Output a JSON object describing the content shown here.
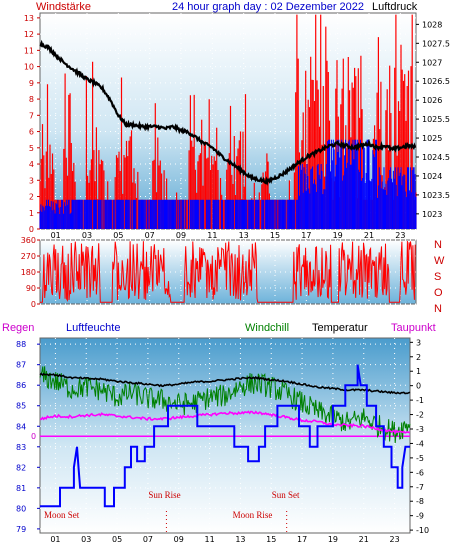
{
  "header": {
    "left_label": "Windstärke",
    "title": "24 hour graph day : 02 Dezember 2022",
    "right_label": "Luftdruck"
  },
  "bottom_header": {
    "regen": "Regen",
    "luftfeuchte": "Luftfeuchte",
    "windchill": "Windchill",
    "temperatur": "Temperatur",
    "taupunkt": "Taupunkt"
  },
  "direction_labels": [
    "N",
    "W",
    "S",
    "O",
    "N"
  ],
  "colors": {
    "wind": "#ff0000",
    "wind_avg": "#0000ff",
    "pressure": "#000000",
    "humidity": "#0000ff",
    "windchill": "#008000",
    "temperature": "#000000",
    "dewpoint": "#ff00ff",
    "rain": "#ff00ff",
    "label_red": "#cc0000",
    "label_blue": "#0000cc"
  },
  "annotations": {
    "sun_rise": "Sun Rise",
    "sun_set": "Sun Set",
    "moon_set": "Moon Set",
    "moon_rise": "Moon Rise",
    "sun_rise_hour": 8.2,
    "sun_set_hour": 16.2,
    "moon_set_hour": 0.2,
    "moon_rise_hour": 16.0
  },
  "rain_zero_label": "0",
  "chart_data": [
    {
      "type": "bar",
      "name": "wind_pressure",
      "x_hours": [
        1,
        3,
        5,
        7,
        9,
        11,
        13,
        15,
        17,
        19,
        21,
        23
      ],
      "x_labels": [
        "01",
        "03",
        "05",
        "07",
        "09",
        "11",
        "13",
        "15",
        "17",
        "19",
        "21",
        "23"
      ],
      "y_left_ticks": [
        0,
        1,
        2,
        3,
        4,
        5,
        6,
        7,
        8,
        9,
        10,
        11,
        12,
        13
      ],
      "y_left_range": [
        0,
        13.3
      ],
      "y_right_ticks": [
        1023,
        1023.5,
        1024,
        1024.5,
        1025,
        1025.5,
        1026,
        1026.5,
        1027,
        1027.5,
        1028
      ],
      "y_right_range": [
        1022.6,
        1028.3
      ],
      "gust_bursts": [
        {
          "from": 0.0,
          "to": 0.9,
          "level": 5.5
        },
        {
          "from": 1.5,
          "to": 2.2,
          "level": 5.5
        },
        {
          "from": 2.9,
          "to": 4.1,
          "level": 5.5
        },
        {
          "from": 4.8,
          "to": 6.3,
          "level": 5.5
        },
        {
          "from": 7.2,
          "to": 7.8,
          "level": 4.5
        },
        {
          "from": 9.5,
          "to": 11.4,
          "level": 5.5
        },
        {
          "from": 12.0,
          "to": 13.2,
          "level": 5.5
        },
        {
          "from": 14.1,
          "to": 14.7,
          "level": 4.5
        },
        {
          "from": 16.3,
          "to": 18.5,
          "level": 9.5
        },
        {
          "from": 18.8,
          "to": 20.6,
          "level": 9.5
        },
        {
          "from": 21.2,
          "to": 22.4,
          "level": 9.0
        },
        {
          "from": 22.6,
          "to": 23.9,
          "level": 11.0
        }
      ],
      "gust_baseline": 1.8,
      "avg_baseline": 1.8,
      "avg_bursts": [
        {
          "from": 0.0,
          "to": 2.0,
          "level": 1.8
        },
        {
          "from": 16.5,
          "to": 18.3,
          "level": 4.0
        },
        {
          "from": 18.3,
          "to": 21.5,
          "level": 5.5
        },
        {
          "from": 21.5,
          "to": 24.0,
          "level": 3.8
        }
      ],
      "pressure_series": [
        [
          0,
          1027.5
        ],
        [
          0.5,
          1027.4
        ],
        [
          1,
          1027.2
        ],
        [
          1.5,
          1027.0
        ],
        [
          2,
          1026.85
        ],
        [
          2.5,
          1026.7
        ],
        [
          3,
          1026.55
        ],
        [
          3.5,
          1026.45
        ],
        [
          4,
          1026.3
        ],
        [
          4.5,
          1026.0
        ],
        [
          5,
          1025.6
        ],
        [
          5.5,
          1025.35
        ],
        [
          6,
          1025.35
        ],
        [
          6.5,
          1025.3
        ],
        [
          7,
          1025.3
        ],
        [
          7.5,
          1025.3
        ],
        [
          8,
          1025.25
        ],
        [
          8.5,
          1025.3
        ],
        [
          9,
          1025.2
        ],
        [
          9.5,
          1025.15
        ],
        [
          10,
          1025.0
        ],
        [
          10.5,
          1024.85
        ],
        [
          11,
          1024.75
        ],
        [
          11.5,
          1024.55
        ],
        [
          12,
          1024.4
        ],
        [
          12.5,
          1024.25
        ],
        [
          13,
          1024.1
        ],
        [
          13.5,
          1023.95
        ],
        [
          14,
          1023.9
        ],
        [
          14.5,
          1023.85
        ],
        [
          15,
          1023.95
        ],
        [
          15.5,
          1024.05
        ],
        [
          16,
          1024.2
        ],
        [
          16.5,
          1024.35
        ],
        [
          17,
          1024.5
        ],
        [
          17.5,
          1024.6
        ],
        [
          18,
          1024.7
        ],
        [
          18.5,
          1024.8
        ],
        [
          19,
          1024.85
        ],
        [
          19.5,
          1024.8
        ],
        [
          20,
          1024.75
        ],
        [
          20.5,
          1024.8
        ],
        [
          21,
          1024.85
        ],
        [
          21.5,
          1024.75
        ],
        [
          22,
          1024.8
        ],
        [
          22.5,
          1024.7
        ],
        [
          23,
          1024.75
        ],
        [
          23.5,
          1024.8
        ],
        [
          24,
          1024.75
        ]
      ]
    },
    {
      "type": "scatter",
      "name": "wind_direction",
      "y_ticks": [
        0,
        90,
        180,
        270,
        360
      ],
      "y_range": [
        0,
        360
      ],
      "active_segments": [
        {
          "from": 0.2,
          "to": 3.8
        },
        {
          "from": 4.6,
          "to": 8.3
        },
        {
          "from": 9.2,
          "to": 13.9
        },
        {
          "from": 16.2,
          "to": 18.6
        },
        {
          "from": 19.1,
          "to": 22.3
        },
        {
          "from": 23.0,
          "to": 24.0
        }
      ],
      "idle_level": 10
    },
    {
      "type": "line",
      "name": "temperature_humidity",
      "y_left_ticks": [
        79,
        80,
        81,
        82,
        83,
        84,
        85,
        86,
        87,
        88
      ],
      "y_left_range": [
        78.8,
        88.3
      ],
      "y_right_ticks": [
        3,
        2,
        1,
        0,
        -1,
        -2,
        -3,
        -4,
        -5,
        -6,
        -7,
        -8,
        -9,
        -10
      ],
      "y_right_range": [
        -10.2,
        3.3
      ],
      "temperature_series": [
        [
          0,
          0.8
        ],
        [
          1,
          0.75
        ],
        [
          2,
          0.55
        ],
        [
          3,
          0.5
        ],
        [
          4,
          0.45
        ],
        [
          5,
          0.3
        ],
        [
          6,
          0.2
        ],
        [
          7,
          0.1
        ],
        [
          8,
          0.0
        ],
        [
          9,
          0.1
        ],
        [
          10,
          0.25
        ],
        [
          11,
          0.3
        ],
        [
          12,
          0.4
        ],
        [
          13,
          0.5
        ],
        [
          14,
          0.55
        ],
        [
          15,
          0.4
        ],
        [
          16,
          0.3
        ],
        [
          17,
          0.1
        ],
        [
          18,
          -0.1
        ],
        [
          19,
          -0.2
        ],
        [
          20,
          -0.3
        ],
        [
          21,
          -0.3
        ],
        [
          22,
          -0.4
        ],
        [
          23,
          -0.5
        ],
        [
          24,
          -0.5
        ]
      ],
      "windchill_series": [
        [
          0,
          0.7
        ],
        [
          1,
          0.3
        ],
        [
          2,
          -0.2
        ],
        [
          3,
          -0.1
        ],
        [
          4,
          -0.3
        ],
        [
          5,
          -0.8
        ],
        [
          6,
          -0.5
        ],
        [
          7,
          -0.9
        ],
        [
          8,
          -1.0
        ],
        [
          9,
          -1.3
        ],
        [
          10,
          -1.2
        ],
        [
          11,
          -0.8
        ],
        [
          12,
          -0.7
        ],
        [
          13,
          0.0
        ],
        [
          14,
          0.2
        ],
        [
          15,
          -0.1
        ],
        [
          16,
          -0.6
        ],
        [
          17,
          -1.2
        ],
        [
          18,
          -1.8
        ],
        [
          19,
          -2.2
        ],
        [
          20,
          -2.6
        ],
        [
          21,
          -2.2
        ],
        [
          22,
          -2.8
        ],
        [
          23,
          -3.2
        ],
        [
          24,
          -2.6
        ]
      ],
      "dewpoint_series": [
        [
          0,
          -2.3
        ],
        [
          1,
          -2.1
        ],
        [
          2,
          -2.15
        ],
        [
          3,
          -2.05
        ],
        [
          4,
          -2.0
        ],
        [
          5,
          -2.1
        ],
        [
          6,
          -2.2
        ],
        [
          7,
          -2.3
        ],
        [
          8,
          -2.3
        ],
        [
          9,
          -2.2
        ],
        [
          10,
          -2.1
        ],
        [
          11,
          -2.0
        ],
        [
          12,
          -1.9
        ],
        [
          13,
          -1.9
        ],
        [
          14,
          -1.85
        ],
        [
          15,
          -2.0
        ],
        [
          16,
          -2.2
        ],
        [
          17,
          -2.4
        ],
        [
          18,
          -2.5
        ],
        [
          19,
          -2.7
        ],
        [
          20,
          -2.75
        ],
        [
          21,
          -2.8
        ],
        [
          22,
          -3.0
        ],
        [
          23,
          -3.2
        ],
        [
          24,
          -3.3
        ]
      ],
      "humidity_steps": [
        [
          0,
          80.1
        ],
        [
          1.3,
          80.1
        ],
        [
          1.3,
          81.0
        ],
        [
          2.2,
          81.0
        ],
        [
          2.2,
          82.0
        ],
        [
          2.4,
          83.0
        ],
        [
          2.5,
          82.0
        ],
        [
          2.6,
          81.0
        ],
        [
          4.2,
          81.0
        ],
        [
          4.2,
          80.1
        ],
        [
          4.8,
          80.1
        ],
        [
          4.8,
          81.0
        ],
        [
          5.5,
          81.0
        ],
        [
          5.5,
          82.0
        ],
        [
          5.9,
          82.0
        ],
        [
          5.9,
          83.0
        ],
        [
          6.3,
          83.0
        ],
        [
          6.3,
          82.3
        ],
        [
          6.8,
          82.3
        ],
        [
          6.8,
          83.0
        ],
        [
          7.4,
          83.0
        ],
        [
          7.4,
          84.0
        ],
        [
          8.3,
          84.0
        ],
        [
          8.3,
          85.0
        ],
        [
          10.2,
          85.0
        ],
        [
          10.2,
          84.0
        ],
        [
          12.6,
          84.0
        ],
        [
          12.6,
          83.0
        ],
        [
          13.5,
          83.0
        ],
        [
          13.5,
          82.3
        ],
        [
          14.2,
          82.3
        ],
        [
          14.2,
          83.0
        ],
        [
          14.6,
          83.0
        ],
        [
          14.6,
          84.0
        ],
        [
          15.4,
          84.0
        ],
        [
          15.4,
          85.0
        ],
        [
          16.8,
          85.0
        ],
        [
          16.8,
          84.0
        ],
        [
          17.5,
          84.0
        ],
        [
          17.5,
          83.0
        ],
        [
          18.0,
          83.0
        ],
        [
          18.0,
          84.0
        ],
        [
          19.0,
          84.0
        ],
        [
          19.0,
          85.0
        ],
        [
          19.8,
          85.0
        ],
        [
          19.8,
          86.0
        ],
        [
          20.6,
          86.0
        ],
        [
          20.6,
          87.0
        ],
        [
          20.8,
          86.0
        ],
        [
          21.2,
          86.0
        ],
        [
          21.2,
          85.0
        ],
        [
          21.8,
          85.0
        ],
        [
          21.8,
          84.0
        ],
        [
          22.3,
          84.0
        ],
        [
          22.3,
          83.0
        ],
        [
          22.8,
          83.0
        ],
        [
          22.8,
          82.0
        ],
        [
          23.2,
          82.0
        ],
        [
          23.2,
          81.0
        ],
        [
          23.5,
          81.0
        ],
        [
          23.5,
          82.0
        ],
        [
          23.7,
          83.0
        ],
        [
          24.0,
          83.0
        ]
      ],
      "rain_value": 0
    }
  ]
}
